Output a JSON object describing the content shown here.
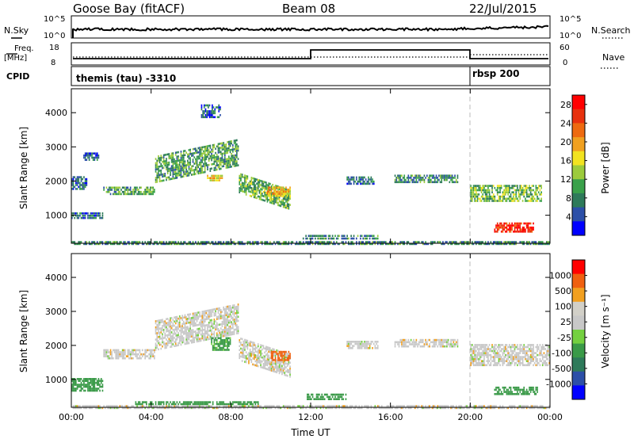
{
  "header": {
    "station": "Goose Bay (fitACF)",
    "beam": "Beam 08",
    "date": "22/Jul/2015"
  },
  "nsky_panel": {
    "left_label": "N.Sky",
    "left_ticks": [
      "10^5",
      "10^0"
    ],
    "right_label": "N.Search",
    "right_ticks": [
      "10^5",
      "10^0"
    ]
  },
  "freq_panel": {
    "left_label_1": "Freq.",
    "left_label_2": "[MHz]",
    "left_ticks": [
      "18",
      "8"
    ],
    "right_label": "Nave",
    "right_ticks": [
      "60",
      "0"
    ]
  },
  "cpid_panel": {
    "label": "CPID",
    "segments": [
      "themis (tau) -3310",
      "rbsp 200"
    ]
  },
  "colors": {
    "power": [
      "#0000ff",
      "#2c4fa8",
      "#2e7a5a",
      "#3aa14a",
      "#9ccb3c",
      "#f2e320",
      "#f0a020",
      "#ee6a10",
      "#e8320e",
      "#ff0000"
    ],
    "velocity": [
      "#ff0000",
      "#f06010",
      "#f2a020",
      "#d2d0c8",
      "#c8c8c8",
      "#74d040",
      "#3a9a48",
      "#2e7a5a",
      "#2c4fa8",
      "#0000ff"
    ],
    "ground_scatter": "#a0a0a0"
  },
  "chart_data": [
    {
      "type": "heatmap",
      "panel": "power",
      "ylabel": "Slant Range [km]",
      "x_ticks": [
        "00:00",
        "04:00",
        "08:00",
        "12:00",
        "16:00",
        "20:00",
        "00:00"
      ],
      "x_range_hours": [
        0,
        24
      ],
      "y_ticks": [
        1000,
        2000,
        3000,
        4000
      ],
      "ylim": [
        180,
        4700
      ],
      "colorbar_label": "Power [dB]",
      "colorbar_ticks": [
        "4",
        "8",
        "12",
        "16",
        "20",
        "24",
        "28"
      ],
      "colorbar_range": [
        0,
        30
      ],
      "mode_change_hour": 20.0,
      "regions": [
        {
          "t": [
            0.0,
            1.6
          ],
          "r": [
            950,
            1150
          ],
          "v": 6
        },
        {
          "t": [
            0.0,
            0.8
          ],
          "r": [
            1800,
            2200
          ],
          "v": 6
        },
        {
          "t": [
            0.6,
            1.4
          ],
          "r": [
            2650,
            2900
          ],
          "v": 5
        },
        {
          "t": [
            1.6,
            4.2
          ],
          "r": [
            1650,
            1900
          ],
          "v": 10
        },
        {
          "t": [
            4.2,
            8.4
          ],
          "r": [
            2000,
            2800
          ],
          "v": 10,
          "slope": 500
        },
        {
          "t": [
            8.4,
            11.0
          ],
          "r": [
            1700,
            2300
          ],
          "v": 11,
          "slope": -500
        },
        {
          "t": [
            9.8,
            11.0
          ],
          "r": [
            1600,
            1900
          ],
          "v": 19
        },
        {
          "t": [
            6.8,
            7.6
          ],
          "r": [
            2050,
            2250
          ],
          "v": 17
        },
        {
          "t": [
            11.6,
            15.4
          ],
          "r": [
            350,
            500
          ],
          "v": 8
        },
        {
          "t": [
            13.8,
            15.2
          ],
          "r": [
            1950,
            2200
          ],
          "v": 7
        },
        {
          "t": [
            16.2,
            19.4
          ],
          "r": [
            2000,
            2250
          ],
          "v": 8
        },
        {
          "t": [
            20.0,
            23.6
          ],
          "r": [
            1450,
            1950
          ],
          "v": 12
        },
        {
          "t": [
            21.2,
            23.2
          ],
          "r": [
            550,
            850
          ],
          "v": 27
        },
        {
          "t": [
            0.0,
            24.0
          ],
          "r": [
            190,
            300
          ],
          "v": 8
        },
        {
          "t": [
            6.5,
            7.5
          ],
          "r": [
            3900,
            4300
          ],
          "v": 5
        }
      ]
    },
    {
      "type": "heatmap",
      "panel": "velocity",
      "ylabel": "Slant Range [km]",
      "xlabel": "Time UT",
      "x_ticks": [
        "00:00",
        "04:00",
        "08:00",
        "12:00",
        "16:00",
        "20:00",
        "00:00"
      ],
      "x_range_hours": [
        0,
        24
      ],
      "y_ticks": [
        1000,
        2000,
        3000,
        4000
      ],
      "ylim": [
        180,
        4700
      ],
      "colorbar_label": "Velocity [m s⁻¹]",
      "colorbar_ticks": [
        "1000",
        "500",
        "100",
        "25",
        "-25",
        "-100",
        "-500",
        "-1000"
      ],
      "mode_change_hour": 20.0,
      "regions": [
        {
          "t": [
            0.0,
            1.6
          ],
          "r": [
            700,
            1100
          ],
          "v": 150
        },
        {
          "t": [
            1.6,
            4.2
          ],
          "r": [
            1650,
            1950
          ],
          "v": 0
        },
        {
          "t": [
            4.2,
            8.4
          ],
          "r": [
            1900,
            2800
          ],
          "v": 0,
          "slope": 500
        },
        {
          "t": [
            8.4,
            11.0
          ],
          "r": [
            1600,
            2300
          ],
          "v": 0,
          "slope": -500
        },
        {
          "t": [
            10.0,
            11.0
          ],
          "r": [
            1600,
            1900
          ],
          "v": -150
        },
        {
          "t": [
            7.0,
            8.0
          ],
          "r": [
            1900,
            2300
          ],
          "v": 120
        },
        {
          "t": [
            11.8,
            13.8
          ],
          "r": [
            450,
            650
          ],
          "v": 130
        },
        {
          "t": [
            3.2,
            9.4
          ],
          "r": [
            300,
            420
          ],
          "v": 150
        },
        {
          "t": [
            13.8,
            15.4
          ],
          "r": [
            1950,
            2200
          ],
          "v": 0
        },
        {
          "t": [
            16.2,
            19.4
          ],
          "r": [
            2000,
            2250
          ],
          "v": 0
        },
        {
          "t": [
            20.0,
            24.0
          ],
          "r": [
            1450,
            2100
          ],
          "v": 0
        },
        {
          "t": [
            21.2,
            23.4
          ],
          "r": [
            600,
            850
          ],
          "v": 150
        },
        {
          "t": [
            0.0,
            24.0
          ],
          "r": [
            190,
            300
          ],
          "v": 0
        }
      ]
    }
  ],
  "axis": {
    "time_label": "Time UT"
  }
}
